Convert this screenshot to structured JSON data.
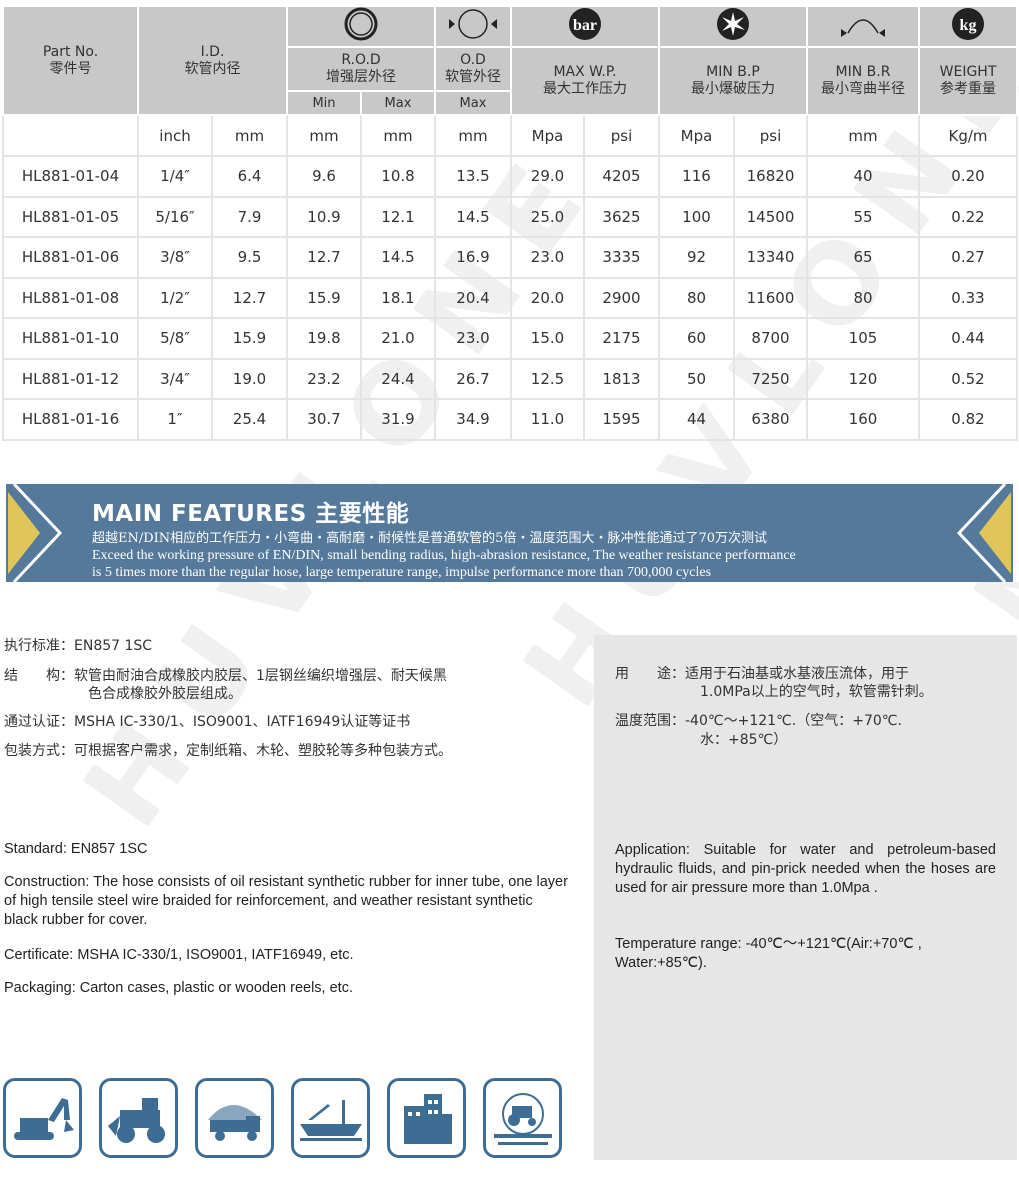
{
  "table": {
    "headers": {
      "part_no": "Part No.",
      "part_no_cn": "零件号",
      "id": "I.D.",
      "id_cn": "软管内径",
      "rod": "R.O.D",
      "rod_cn": "增强层外径",
      "od": "O.D",
      "od_cn": "软管外径",
      "min": "Min",
      "max": "Max",
      "od_max": "Max",
      "mwp": "MAX W.P.",
      "mwp_cn": "最大工作压力",
      "mbp": "MIN B.P",
      "mbp_cn": "最小爆破压力",
      "mbr": "MIN B.R",
      "mbr_cn": "最小弯曲半径",
      "weight": "WEIGHT",
      "weight_cn": "参考重量",
      "bar_icon_text": "bar",
      "kg_icon_text": "kg"
    },
    "units": [
      "",
      "inch",
      "mm",
      "mm",
      "mm",
      "mm",
      "Mpa",
      "psi",
      "Mpa",
      "psi",
      "mm",
      "Kg/m"
    ],
    "rows": [
      [
        "HL881-01-04",
        "1/4″",
        "6.4",
        "9.6",
        "10.8",
        "13.5",
        "29.0",
        "4205",
        "116",
        "16820",
        "40",
        "0.20"
      ],
      [
        "HL881-01-05",
        "5/16″",
        "7.9",
        "10.9",
        "12.1",
        "14.5",
        "25.0",
        "3625",
        "100",
        "14500",
        "55",
        "0.22"
      ],
      [
        "HL881-01-06",
        "3/8″",
        "9.5",
        "12.7",
        "14.5",
        "16.9",
        "23.0",
        "3335",
        "92",
        "13340",
        "65",
        "0.27"
      ],
      [
        "HL881-01-08",
        "1/2″",
        "12.7",
        "15.9",
        "18.1",
        "20.4",
        "20.0",
        "2900",
        "80",
        "11600",
        "80",
        "0.33"
      ],
      [
        "HL881-01-10",
        "5/8″",
        "15.9",
        "19.8",
        "21.0",
        "23.0",
        "15.0",
        "2175",
        "60",
        "8700",
        "105",
        "0.44"
      ],
      [
        "HL881-01-12",
        "3/4″",
        "19.0",
        "23.2",
        "24.4",
        "26.7",
        "12.5",
        "1813",
        "50",
        "7250",
        "120",
        "0.52"
      ],
      [
        "HL881-01-16",
        "1″",
        "25.4",
        "30.7",
        "31.9",
        "34.9",
        "11.0",
        "1595",
        "44",
        "6380",
        "160",
        "0.82"
      ]
    ]
  },
  "banner": {
    "title": "MAIN FEATURES 主要性能",
    "cn": "超越EN/DIN相应的工作压力・小弯曲・高耐磨・耐候性是普通软管的5倍・温度范围大・脉冲性能通过了70万次测试",
    "en1": "Exceed the working pressure of EN/DIN, small bending radius, high-abrasion resistance, The weather resistance performance",
    "en2": "is 5 times more than the regular hose, large temperature range, impulse performance more than 700,000 cycles"
  },
  "cn_left": {
    "standard": "执行标准：EN857 1SC",
    "structure1": "结　　构：软管由耐油合成橡胶内胶层、1层钢丝编织增强层、耐天候黑",
    "structure2": "色合成橡胶外胶层组成。",
    "cert": "通过认证：MSHA IC-330/1、ISO9001、IATF16949认证等证书",
    "pack": "包装方式：可根据客户需求，定制纸箱、木轮、塑胶轮等多种包装方式。"
  },
  "cn_right": {
    "use1": "用　　途：适用于石油基或水基液压流体，用于",
    "use2": "1.0MPa以上的空气时，软管需针刺。",
    "temp1": "温度范围：-40℃～+121℃.（空气：+70℃.",
    "temp2": "水：+85℃）"
  },
  "en_left": {
    "standard": "Standard: EN857 1SC",
    "construction": "Construction:  The hose consists of oil resistant synthetic rubber for inner tube,  one layer of high tensile steel wire braided for reinforcement, and weather resistant synthetic black rubber for cover.",
    "certificate": "Certificate: MSHA IC-330/1, ISO9001, IATF16949,  etc.",
    "packaging": "Packaging: Carton cases, plastic or wooden reels, etc."
  },
  "en_right": {
    "application": "Application: Suitable for water and petroleum-based hydraulic fluids, and pin-prick needed when the hoses are used for air pressure more than 1.0Mpa .",
    "temperature": "Temperature range: -40℃～+121℃(Air:+70℃ , Water:+85℃)."
  },
  "watermark": "HUVLONE",
  "colors": {
    "header_bg": "#c8c8c8",
    "banner": "#55799a",
    "banner_accent": "#e0c55a",
    "icon_border": "#3d6d94",
    "panel": "#e6e6e6"
  },
  "icons": [
    "excavator-icon",
    "wheel-loader-icon",
    "dump-truck-icon",
    "ship-crane-icon",
    "building-icon",
    "tractor-farm-icon"
  ]
}
